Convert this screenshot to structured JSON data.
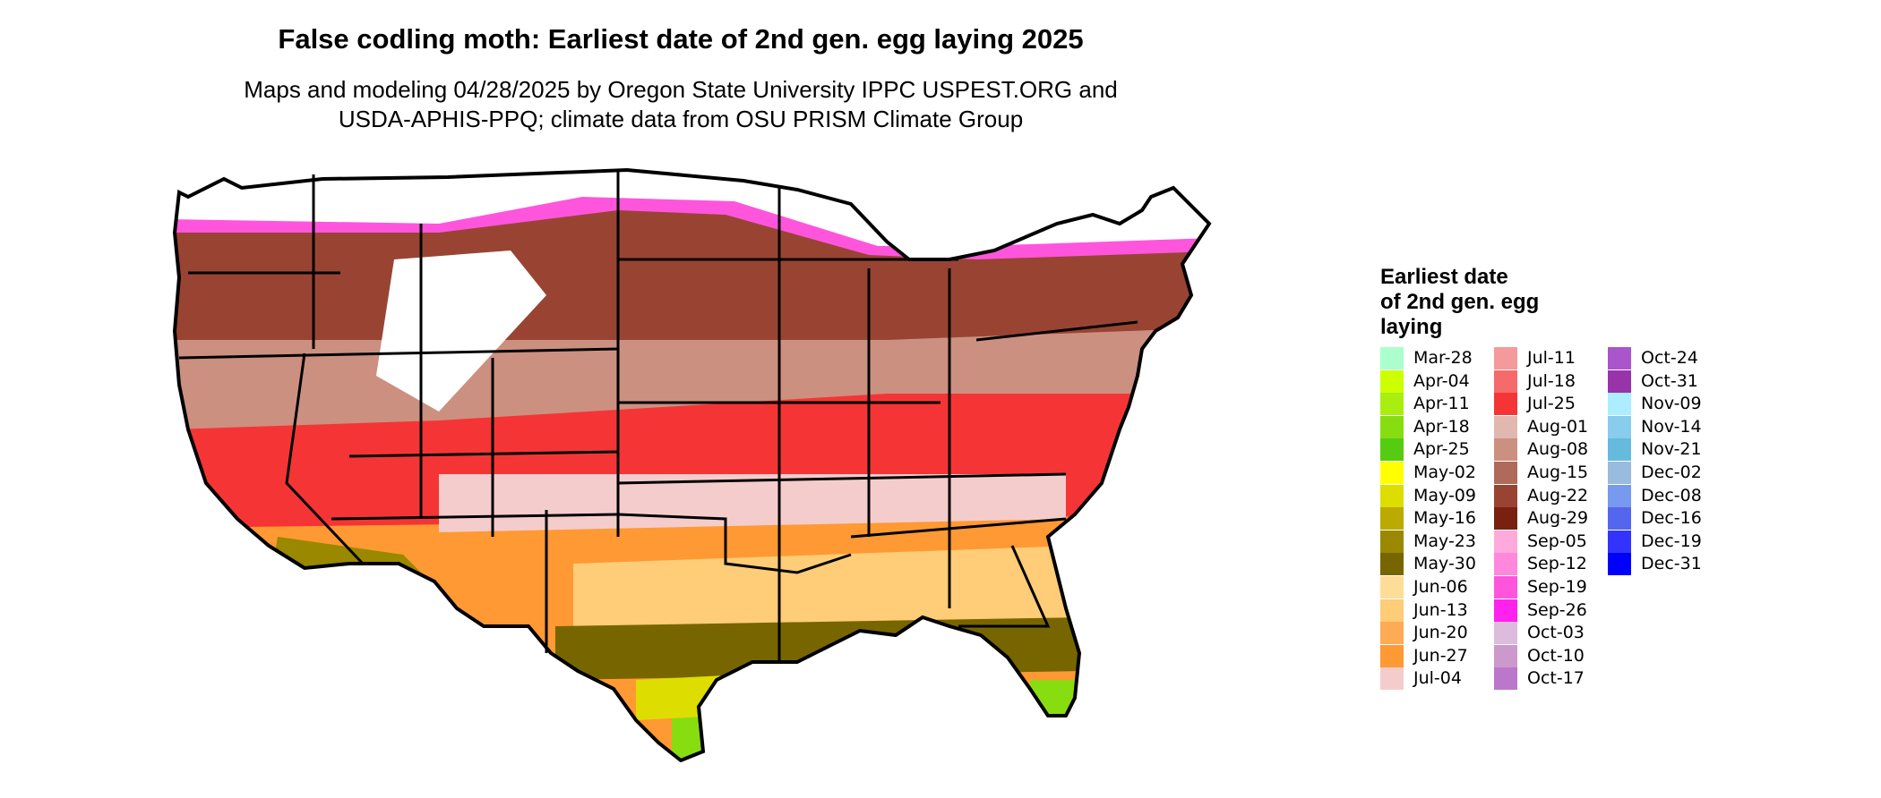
{
  "title": "False codling moth: Earliest date of 2nd gen. egg laying 2025",
  "subtitle": {
    "line1": "Maps and modeling 04/28/2025 by Oregon State University IPPC USPEST.ORG and",
    "line2": "USDA-APHIS-PPQ; climate data from OSU PRISM Climate Group"
  },
  "legend": {
    "title_lines": [
      "Earliest date",
      "of 2nd gen. egg",
      "laying"
    ],
    "items": [
      {
        "label": "Mar-28",
        "color": "#aaffcc"
      },
      {
        "label": "Apr-04",
        "color": "#ccff00"
      },
      {
        "label": "Apr-11",
        "color": "#aaee11"
      },
      {
        "label": "Apr-18",
        "color": "#88dd11"
      },
      {
        "label": "Apr-25",
        "color": "#55cc11"
      },
      {
        "label": "May-02",
        "color": "#ffff00"
      },
      {
        "label": "May-09",
        "color": "#dddd00"
      },
      {
        "label": "May-16",
        "color": "#bbaa00"
      },
      {
        "label": "May-23",
        "color": "#998800"
      },
      {
        "label": "May-30",
        "color": "#776600"
      },
      {
        "label": "Jun-06",
        "color": "#ffdd99"
      },
      {
        "label": "Jun-13",
        "color": "#ffcc77"
      },
      {
        "label": "Jun-20",
        "color": "#ffaa55"
      },
      {
        "label": "Jun-27",
        "color": "#ff9933"
      },
      {
        "label": "Jul-04",
        "color": "#f5cccc"
      },
      {
        "label": "Jul-11",
        "color": "#f59a9a"
      },
      {
        "label": "Jul-18",
        "color": "#f56a6a"
      },
      {
        "label": "Jul-25",
        "color": "#f53535"
      },
      {
        "label": "Aug-01",
        "color": "#e0b8b0"
      },
      {
        "label": "Aug-08",
        "color": "#cc9080"
      },
      {
        "label": "Aug-15",
        "color": "#b06a5a"
      },
      {
        "label": "Aug-22",
        "color": "#994433"
      },
      {
        "label": "Aug-29",
        "color": "#7a2010"
      },
      {
        "label": "Sep-05",
        "color": "#ffaadd"
      },
      {
        "label": "Sep-12",
        "color": "#ff88dd"
      },
      {
        "label": "Sep-19",
        "color": "#ff55dd"
      },
      {
        "label": "Sep-26",
        "color": "#ff22ee"
      },
      {
        "label": "Oct-03",
        "color": "#ddbbdd"
      },
      {
        "label": "Oct-10",
        "color": "#cc99cc"
      },
      {
        "label": "Oct-17",
        "color": "#bb77cc"
      },
      {
        "label": "Oct-24",
        "color": "#aa55cc"
      },
      {
        "label": "Oct-31",
        "color": "#9933aa"
      },
      {
        "label": "Nov-09",
        "color": "#aaeeff"
      },
      {
        "label": "Nov-14",
        "color": "#88ccee"
      },
      {
        "label": "Nov-21",
        "color": "#66bbdd"
      },
      {
        "label": "Dec-02",
        "color": "#99bbdd"
      },
      {
        "label": "Dec-08",
        "color": "#7799ee"
      },
      {
        "label": "Dec-16",
        "color": "#5566ee"
      },
      {
        "label": "Dec-19",
        "color": "#3333ff"
      },
      {
        "label": "Dec-31",
        "color": "#0000ff"
      }
    ]
  },
  "map": {
    "region": "Conterminous United States",
    "zones_by_color": [
      {
        "area": "Southern Florida and south Texas tip",
        "color": "#88dd11"
      },
      {
        "area": "Gulf coast band",
        "color": "#776600"
      },
      {
        "area": "Southeast interior",
        "color": "#ffcc77"
      },
      {
        "area": "Arizona desert",
        "color": "#998800"
      },
      {
        "area": "Southern Plains and Carolinas",
        "color": "#ff9933"
      },
      {
        "area": "Central Plains and Ohio Valley",
        "color": "#f53535"
      },
      {
        "area": "Northern Plains and Great Lakes",
        "color": "#994433"
      },
      {
        "area": "Northern fringes and mountains",
        "color": "#ff55dd"
      },
      {
        "area": "Far north and high Rockies (no date)",
        "color": "#ffffff"
      }
    ]
  }
}
